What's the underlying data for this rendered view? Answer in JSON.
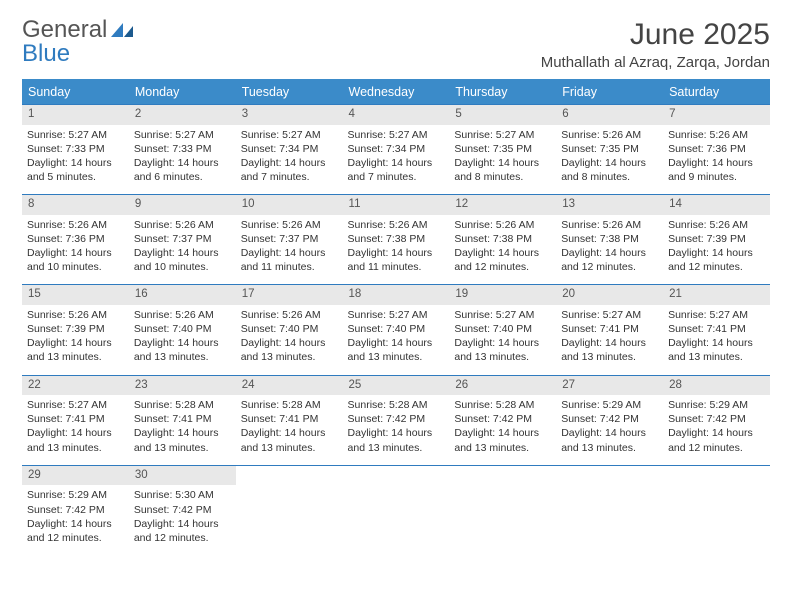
{
  "logo": {
    "part1": "General",
    "part2": "Blue"
  },
  "title": "June 2025",
  "location": "Muthallath al Azraq, Zarqa, Jordan",
  "colors": {
    "header_bg": "#3b8bc9",
    "header_text": "#ffffff",
    "border": "#2f7bbf",
    "daynum_bg": "#e8e8e8",
    "text": "#333333",
    "logo_gray": "#555555",
    "logo_blue": "#2f7bbf"
  },
  "weekdays": [
    "Sunday",
    "Monday",
    "Tuesday",
    "Wednesday",
    "Thursday",
    "Friday",
    "Saturday"
  ],
  "days": [
    {
      "n": "1",
      "sunrise": "5:27 AM",
      "sunset": "7:33 PM",
      "dl": "14 hours and 5 minutes."
    },
    {
      "n": "2",
      "sunrise": "5:27 AM",
      "sunset": "7:33 PM",
      "dl": "14 hours and 6 minutes."
    },
    {
      "n": "3",
      "sunrise": "5:27 AM",
      "sunset": "7:34 PM",
      "dl": "14 hours and 7 minutes."
    },
    {
      "n": "4",
      "sunrise": "5:27 AM",
      "sunset": "7:34 PM",
      "dl": "14 hours and 7 minutes."
    },
    {
      "n": "5",
      "sunrise": "5:27 AM",
      "sunset": "7:35 PM",
      "dl": "14 hours and 8 minutes."
    },
    {
      "n": "6",
      "sunrise": "5:26 AM",
      "sunset": "7:35 PM",
      "dl": "14 hours and 8 minutes."
    },
    {
      "n": "7",
      "sunrise": "5:26 AM",
      "sunset": "7:36 PM",
      "dl": "14 hours and 9 minutes."
    },
    {
      "n": "8",
      "sunrise": "5:26 AM",
      "sunset": "7:36 PM",
      "dl": "14 hours and 10 minutes."
    },
    {
      "n": "9",
      "sunrise": "5:26 AM",
      "sunset": "7:37 PM",
      "dl": "14 hours and 10 minutes."
    },
    {
      "n": "10",
      "sunrise": "5:26 AM",
      "sunset": "7:37 PM",
      "dl": "14 hours and 11 minutes."
    },
    {
      "n": "11",
      "sunrise": "5:26 AM",
      "sunset": "7:38 PM",
      "dl": "14 hours and 11 minutes."
    },
    {
      "n": "12",
      "sunrise": "5:26 AM",
      "sunset": "7:38 PM",
      "dl": "14 hours and 12 minutes."
    },
    {
      "n": "13",
      "sunrise": "5:26 AM",
      "sunset": "7:38 PM",
      "dl": "14 hours and 12 minutes."
    },
    {
      "n": "14",
      "sunrise": "5:26 AM",
      "sunset": "7:39 PM",
      "dl": "14 hours and 12 minutes."
    },
    {
      "n": "15",
      "sunrise": "5:26 AM",
      "sunset": "7:39 PM",
      "dl": "14 hours and 13 minutes."
    },
    {
      "n": "16",
      "sunrise": "5:26 AM",
      "sunset": "7:40 PM",
      "dl": "14 hours and 13 minutes."
    },
    {
      "n": "17",
      "sunrise": "5:26 AM",
      "sunset": "7:40 PM",
      "dl": "14 hours and 13 minutes."
    },
    {
      "n": "18",
      "sunrise": "5:27 AM",
      "sunset": "7:40 PM",
      "dl": "14 hours and 13 minutes."
    },
    {
      "n": "19",
      "sunrise": "5:27 AM",
      "sunset": "7:40 PM",
      "dl": "14 hours and 13 minutes."
    },
    {
      "n": "20",
      "sunrise": "5:27 AM",
      "sunset": "7:41 PM",
      "dl": "14 hours and 13 minutes."
    },
    {
      "n": "21",
      "sunrise": "5:27 AM",
      "sunset": "7:41 PM",
      "dl": "14 hours and 13 minutes."
    },
    {
      "n": "22",
      "sunrise": "5:27 AM",
      "sunset": "7:41 PM",
      "dl": "14 hours and 13 minutes."
    },
    {
      "n": "23",
      "sunrise": "5:28 AM",
      "sunset": "7:41 PM",
      "dl": "14 hours and 13 minutes."
    },
    {
      "n": "24",
      "sunrise": "5:28 AM",
      "sunset": "7:41 PM",
      "dl": "14 hours and 13 minutes."
    },
    {
      "n": "25",
      "sunrise": "5:28 AM",
      "sunset": "7:42 PM",
      "dl": "14 hours and 13 minutes."
    },
    {
      "n": "26",
      "sunrise": "5:28 AM",
      "sunset": "7:42 PM",
      "dl": "14 hours and 13 minutes."
    },
    {
      "n": "27",
      "sunrise": "5:29 AM",
      "sunset": "7:42 PM",
      "dl": "14 hours and 13 minutes."
    },
    {
      "n": "28",
      "sunrise": "5:29 AM",
      "sunset": "7:42 PM",
      "dl": "14 hours and 12 minutes."
    },
    {
      "n": "29",
      "sunrise": "5:29 AM",
      "sunset": "7:42 PM",
      "dl": "14 hours and 12 minutes."
    },
    {
      "n": "30",
      "sunrise": "5:30 AM",
      "sunset": "7:42 PM",
      "dl": "14 hours and 12 minutes."
    }
  ],
  "labels": {
    "sunrise": "Sunrise:",
    "sunset": "Sunset:",
    "daylight": "Daylight:"
  },
  "first_day_column": 0,
  "num_days": 30
}
